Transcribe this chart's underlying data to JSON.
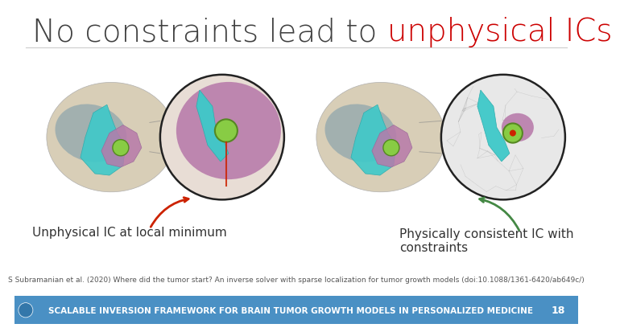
{
  "title_black": "No constraints lead to ",
  "title_red": "unphysical ICs",
  "title_fontsize": 28,
  "title_color_black": "#404040",
  "title_color_red": "#cc0000",
  "label_left": "Unphysical IC at local minimum",
  "label_right": "Physically consistent IC with\nconstraints",
  "label_fontsize": 11,
  "citation": "S Subramanian et al. (2020) Where did the tumor start? An inverse solver with sparse localization for tumor growth models (doi:10.1088/1361-6420/ab649c/)",
  "citation_fontsize": 6.5,
  "footer_text": "SCALABLE INVERSION FRAMEWORK FOR BRAIN TUMOR GROWTH MODELS IN PERSONALIZED MEDICINE",
  "footer_number": "18",
  "footer_bg": "#4a90c4",
  "footer_text_color": "#ffffff",
  "bg_color": "#ffffff",
  "divider_color": "#cccccc",
  "arrow_left_color": "#cc2200",
  "arrow_right_color": "#448844"
}
